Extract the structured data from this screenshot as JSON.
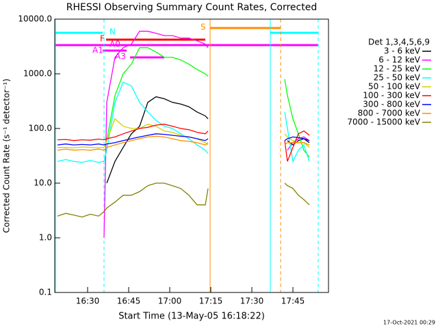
{
  "chart_data": {
    "type": "line",
    "title": "RHESSI Observing Summary Count Rates, Corrected",
    "xlabel": "Start Time (13-May-05 16:18:22)",
    "ylabel": "Corrected Count Rate (s⁻¹ detector⁻¹)",
    "footer": "17-Oct-2021 00:29",
    "legend_title": "Det 1,3,4,5,6,9",
    "annotations": [
      "N",
      "F",
      "A0",
      "A1",
      "A3",
      "S"
    ],
    "log_y": true,
    "xlim": [
      "16:18",
      "17:58"
    ],
    "xticks": [
      "16:30",
      "16:45",
      "17:00",
      "17:15",
      "17:30",
      "17:45"
    ],
    "ylim": [
      0.1,
      10000
    ],
    "yticks": [
      0.1,
      {
        "value": 1,
        "label": "1.0"
      },
      {
        "value": 10,
        "label": "10.0"
      },
      {
        "value": 100,
        "label": "100.0"
      },
      {
        "value": 1000,
        "label": "1000.0"
      },
      {
        "value": 10000,
        "label": "10000.0"
      }
    ],
    "x": [
      "16:19",
      "16:22",
      "16:25",
      "16:28",
      "16:31",
      "16:34",
      "16:36",
      "16:37",
      "16:40",
      "16:43",
      "16:46",
      "16:49",
      "16:52",
      "16:55",
      "16:58",
      "17:01",
      "17:04",
      "17:07",
      "17:10",
      "17:13",
      "17:14",
      "17:30",
      "17:42",
      "17:43",
      "17:45",
      "17:47",
      "17:49",
      "17:51"
    ],
    "series": [
      {
        "name": "3 - 6 keV",
        "color": "#000000",
        "values": [
          null,
          null,
          null,
          null,
          null,
          null,
          null,
          10,
          25,
          45,
          80,
          110,
          300,
          380,
          350,
          300,
          280,
          250,
          200,
          170,
          150,
          null,
          null,
          60,
          50,
          60,
          65,
          55
        ]
      },
      {
        "name": "6 - 12 keV",
        "color": "#ff00ff",
        "values": [
          null,
          null,
          null,
          null,
          null,
          null,
          1.0,
          300,
          2000,
          3000,
          3500,
          6000,
          6000,
          5500,
          5000,
          5000,
          4500,
          4500,
          4000,
          3500,
          3000,
          null,
          null,
          40,
          55,
          65,
          70,
          60
        ]
      },
      {
        "name": "12 - 25 keV",
        "color": "#00ff00",
        "values": [
          null,
          null,
          null,
          null,
          null,
          null,
          null,
          60,
          400,
          1000,
          1500,
          3000,
          3000,
          2500,
          2000,
          2000,
          1800,
          1500,
          1200,
          1000,
          900,
          null,
          800,
          400,
          150,
          80,
          40,
          30
        ]
      },
      {
        "name": "25 - 50 keV",
        "color": "#00ffff",
        "values": [
          25,
          27,
          25,
          24,
          26,
          24,
          25,
          40,
          300,
          700,
          600,
          300,
          200,
          140,
          110,
          100,
          80,
          65,
          50,
          40,
          35,
          null,
          200,
          100,
          25,
          40,
          50,
          25
        ]
      },
      {
        "name": "50 - 100 keV",
        "color": "#d0d000",
        "values": [
          45,
          45,
          44,
          46,
          45,
          44,
          45,
          60,
          150,
          110,
          100,
          100,
          120,
          110,
          90,
          85,
          75,
          70,
          65,
          55,
          50,
          null,
          80,
          70,
          60,
          55,
          55,
          45
        ]
      },
      {
        "name": "100 - 300 keV",
        "color": "#ff0000",
        "values": [
          62,
          63,
          60,
          62,
          61,
          64,
          62,
          65,
          70,
          80,
          90,
          100,
          105,
          115,
          120,
          110,
          100,
          95,
          85,
          80,
          90,
          null,
          60,
          25,
          45,
          80,
          90,
          75
        ]
      },
      {
        "name": "300 - 800 keV",
        "color": "#0000ff",
        "values": [
          50,
          52,
          50,
          51,
          50,
          52,
          50,
          52,
          55,
          60,
          65,
          70,
          75,
          80,
          78,
          75,
          72,
          70,
          65,
          60,
          65,
          null,
          60,
          65,
          70,
          68,
          65,
          60
        ]
      },
      {
        "name": "800 - 7000 keV",
        "color": "#ff8c00",
        "values": [
          40,
          42,
          40,
          41,
          40,
          42,
          40,
          45,
          50,
          55,
          60,
          65,
          70,
          72,
          70,
          65,
          60,
          58,
          55,
          50,
          55,
          null,
          50,
          55,
          55,
          55,
          55,
          50
        ]
      },
      {
        "name": "7000 - 15000 keV",
        "color": "#808000",
        "values": [
          2.5,
          2.8,
          2.6,
          2.4,
          2.7,
          2.5,
          3.0,
          3.5,
          4.5,
          6,
          6,
          7,
          9,
          10,
          10,
          9,
          8,
          6,
          4,
          4,
          8,
          null,
          10,
          9,
          8,
          6,
          5,
          4
        ]
      }
    ]
  }
}
